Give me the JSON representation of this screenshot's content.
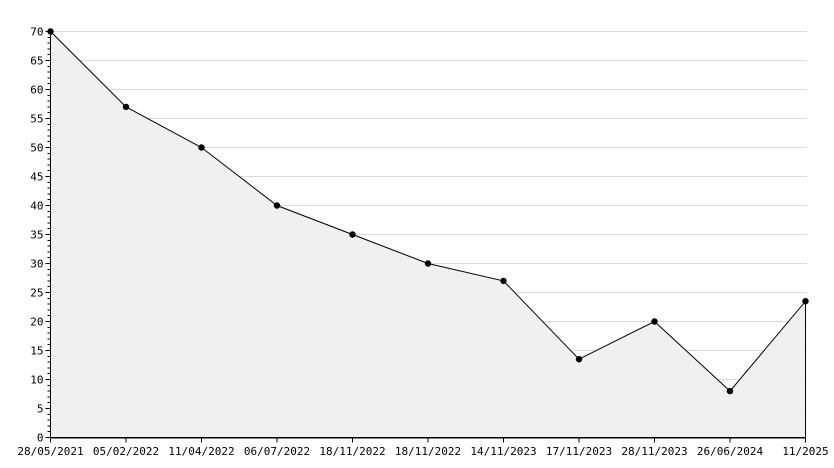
{
  "chart": {
    "title": "",
    "background_color": "#ffffff"
  },
  "chart_data": {
    "type": "area",
    "title": "",
    "xlabel": "",
    "ylabel": "",
    "x_labels": [
      "28/05/2021",
      "05/02/2022",
      "11/04/2022",
      "06/07/2022",
      "18/11/2022",
      "18/11/2022",
      "14/11/2023",
      "17/11/2023",
      "28/11/2023",
      "26/06/2024",
      "11/2025"
    ],
    "values": [
      70,
      57,
      50,
      40,
      35,
      30,
      27,
      13.5,
      20,
      8,
      23.5
    ],
    "ylim": [
      0,
      70
    ],
    "y_tick_step": 5,
    "y_minor_tick_step": 1,
    "grid": "horizontal-major-only",
    "legend": "none",
    "marker": "filled-circle",
    "colors": {
      "line": "#000000",
      "marker": "#000000",
      "fill": "#f0f0f0",
      "grid": "#d9d9d9",
      "axis": "#000000",
      "text": "#000000",
      "background": "#ffffff"
    }
  }
}
